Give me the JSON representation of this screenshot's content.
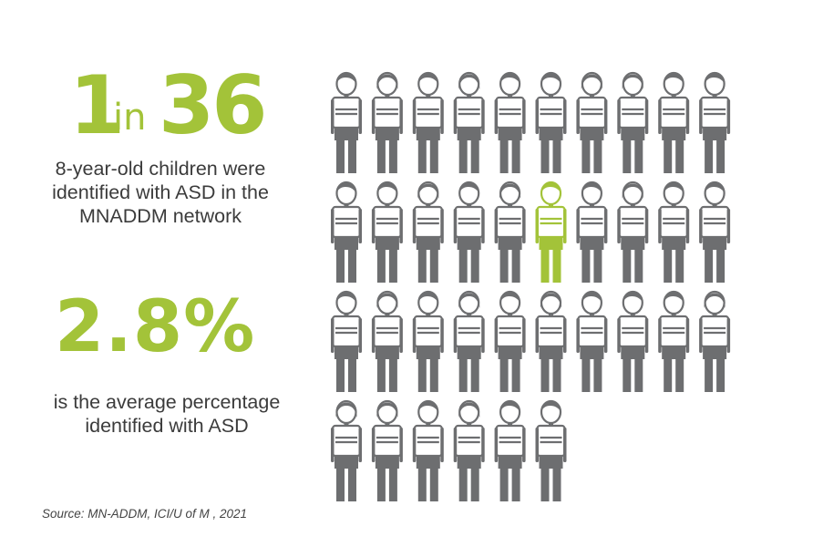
{
  "headline": {
    "num1": "1",
    "in": "in",
    "num2": "36",
    "caption": "8-year-old children were identified with ASD in the MNADDM network"
  },
  "average": {
    "value": "2.8%",
    "caption": "is the average percentage identified with ASD"
  },
  "source": "Source: MN-ADDM, ICI/U of M , 2021",
  "pictogram": {
    "total": 36,
    "highlighted_index": 15,
    "per_row": 10,
    "icon": "child-figure-icon",
    "colors": {
      "default": "#6d6e70",
      "highlight": "#a3c339"
    },
    "types": [
      "b",
      "g",
      "b",
      "g",
      "b",
      "b",
      "g",
      "g",
      "b",
      "b",
      "b",
      "b",
      "g",
      "b",
      "g",
      "b",
      "b",
      "g",
      "b",
      "b",
      "b",
      "g",
      "b",
      "g",
      "b",
      "g",
      "b",
      "b",
      "b",
      "g",
      "g",
      "g",
      "b",
      "g",
      "b",
      "b"
    ]
  }
}
